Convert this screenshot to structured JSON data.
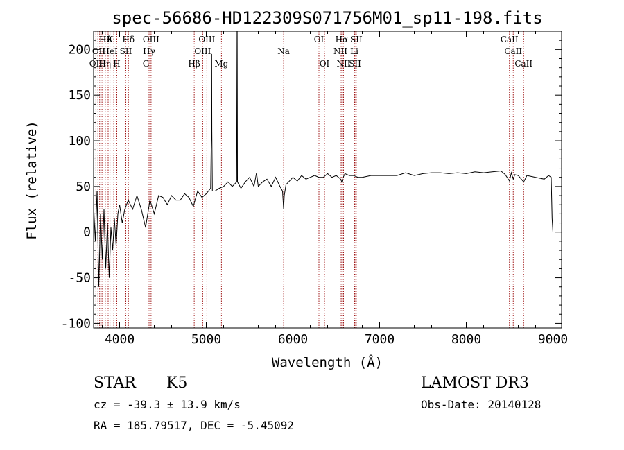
{
  "chart_data": {
    "type": "line",
    "title": "spec-56686-HD122309S071756M01_sp11-198.fits",
    "xlabel": "Wavelength (Å)",
    "ylabel": "Flux (relative)",
    "xlim": [
      3700,
      9100
    ],
    "ylim": [
      -105,
      220
    ],
    "x_ticks": [
      4000,
      5000,
      6000,
      7000,
      8000,
      9000
    ],
    "y_ticks": [
      -100,
      -50,
      0,
      50,
      100,
      150,
      200
    ],
    "grid": false,
    "legend": "none",
    "series": [
      {
        "x": [
          3700,
          3720,
          3740,
          3760,
          3780,
          3800,
          3820,
          3840,
          3860,
          3880,
          3900,
          3920,
          3940,
          3960,
          3980,
          4000,
          4030,
          4060,
          4100,
          4150,
          4200,
          4250,
          4300,
          4350,
          4400,
          4450,
          4500,
          4550,
          4600,
          4650,
          4700,
          4750,
          4800,
          4850,
          4900,
          4950,
          5000,
          5050,
          5060,
          5062,
          5065,
          5070,
          5100,
          5150,
          5200,
          5250,
          5300,
          5350,
          5355,
          5357,
          5360,
          5400,
          5450,
          5500,
          5550,
          5580,
          5600,
          5650,
          5700,
          5750,
          5800,
          5850,
          5880,
          5893,
          5900,
          5920,
          5950,
          6000,
          6050,
          6100,
          6150,
          6200,
          6250,
          6300,
          6350,
          6400,
          6450,
          6500,
          6550,
          6563,
          6580,
          6600,
          6650,
          6700,
          6750,
          6800,
          6900,
          7000,
          7100,
          7200,
          7300,
          7400,
          7500,
          7600,
          7700,
          7800,
          7900,
          8000,
          8100,
          8200,
          8300,
          8400,
          8450,
          8498,
          8520,
          8542,
          8560,
          8600,
          8662,
          8700,
          8800,
          8900,
          8950,
          8980,
          8990,
          9000
        ],
        "y": [
          30,
          -10,
          45,
          -60,
          20,
          -30,
          25,
          -40,
          10,
          -50,
          5,
          -20,
          15,
          -15,
          20,
          30,
          10,
          25,
          35,
          25,
          40,
          25,
          5,
          35,
          20,
          40,
          38,
          30,
          40,
          35,
          35,
          42,
          38,
          28,
          45,
          38,
          42,
          48,
          120,
          195,
          110,
          45,
          45,
          48,
          50,
          55,
          50,
          55,
          220,
          220,
          55,
          48,
          55,
          60,
          50,
          65,
          50,
          55,
          58,
          50,
          60,
          50,
          45,
          25,
          40,
          52,
          55,
          60,
          56,
          62,
          58,
          60,
          62,
          60,
          60,
          64,
          60,
          62,
          58,
          55,
          60,
          64,
          62,
          62,
          60,
          60,
          62,
          62,
          62,
          62,
          65,
          62,
          64,
          65,
          65,
          64,
          65,
          64,
          66,
          65,
          66,
          67,
          63,
          56,
          65,
          58,
          63,
          62,
          55,
          62,
          60,
          58,
          62,
          60,
          15,
          0
        ]
      }
    ],
    "line_labels_top": [
      {
        "x": 3835,
        "text": "Hθ"
      },
      {
        "x": 3889,
        "text": "K"
      },
      {
        "x": 4102,
        "text": "Hδ"
      },
      {
        "x": 4363,
        "text": "OIII"
      },
      {
        "x": 5007,
        "text": "OIII"
      },
      {
        "x": 6300,
        "text": "OI"
      },
      {
        "x": 6563,
        "text": "Hα"
      },
      {
        "x": 6731,
        "text": "SII"
      },
      {
        "x": 8498,
        "text": "CaII"
      }
    ],
    "line_labels_mid": [
      {
        "x": 3760,
        "text": "OII"
      },
      {
        "x": 3889,
        "text": "HeI"
      },
      {
        "x": 4072,
        "text": "SII"
      },
      {
        "x": 4340,
        "text": "Hγ"
      },
      {
        "x": 4959,
        "text": "OIII"
      },
      {
        "x": 5893,
        "text": "Na"
      },
      {
        "x": 6548,
        "text": "NII"
      },
      {
        "x": 6708,
        "text": "Li"
      },
      {
        "x": 8542,
        "text": "CaII"
      }
    ],
    "line_labels_low": [
      {
        "x": 3727,
        "text": "OII"
      },
      {
        "x": 3830,
        "text": "Hη"
      },
      {
        "x": 3968,
        "text": "H"
      },
      {
        "x": 4304,
        "text": "G"
      },
      {
        "x": 4861,
        "text": "Hβ"
      },
      {
        "x": 5175,
        "text": "Mg"
      },
      {
        "x": 6364,
        "text": "OI"
      },
      {
        "x": 6584,
        "text": "NII"
      },
      {
        "x": 6716,
        "text": "SII"
      },
      {
        "x": 8662,
        "text": "CaII"
      }
    ],
    "line_markers": [
      3727,
      3750,
      3770,
      3797,
      3835,
      3868,
      3889,
      3933,
      3968,
      4072,
      4102,
      4304,
      4340,
      4363,
      4861,
      4959,
      5007,
      5175,
      5893,
      6300,
      6364,
      6548,
      6563,
      6584,
      6708,
      6716,
      6731,
      8498,
      8542,
      8662
    ]
  },
  "info": {
    "object_class": "STAR",
    "subclass": "K5",
    "survey": "LAMOST DR3",
    "velocity": "cz = -39.3 ± 13.9 km/s",
    "obs_date": "Obs-Date: 20140128",
    "coordinates": "RA = 185.79517, DEC =  -5.45092"
  }
}
